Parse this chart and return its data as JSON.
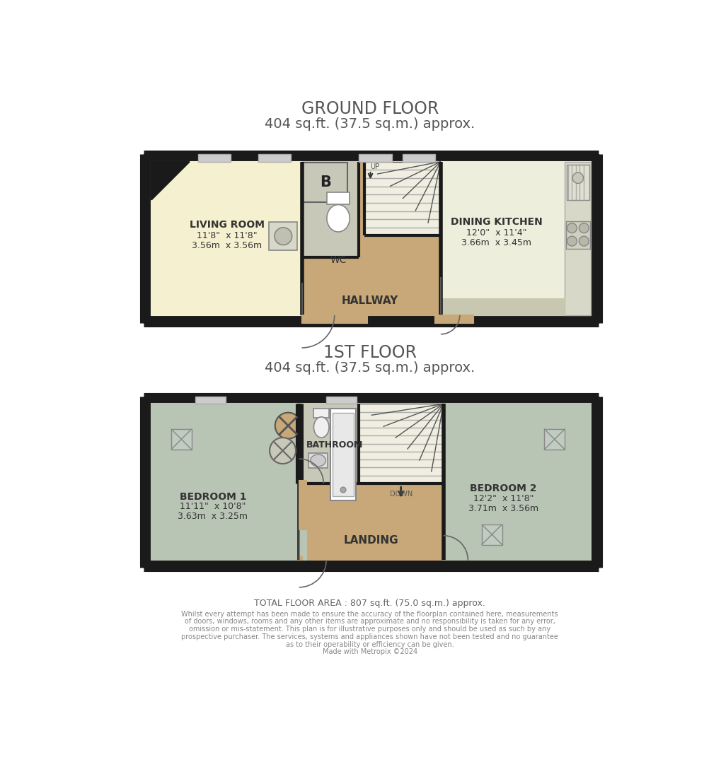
{
  "bg_color": "#ffffff",
  "wall_color": "#1a1a1a",
  "living_room_color": "#f5f0d0",
  "kitchen_color": "#eeeedd",
  "hallway_color": "#c8a878",
  "wc_color": "#c8c8b8",
  "stair_color": "#f0eee0",
  "bathroom_fill": "#c8a878",
  "bedroom1_color": "#b8c4b4",
  "bedroom2_color": "#b8c4b4",
  "landing_color": "#c8a878",
  "title_color": "#555555",
  "ground_floor_title": "GROUND FLOOR",
  "ground_floor_subtitle": "404 sq.ft. (37.5 sq.m.) approx.",
  "first_floor_title": "1ST FLOOR",
  "first_floor_subtitle": "404 sq.ft. (37.5 sq.m.) approx.",
  "total_area": "TOTAL FLOOR AREA : 807 sq.ft. (75.0 sq.m.) approx.",
  "disclaimer_line1": "Whilst every attempt has been made to ensure the accuracy of the floorplan contained here, measurements",
  "disclaimer_line2": "of doors, windows, rooms and any other items are approximate and no responsibility is taken for any error,",
  "disclaimer_line3": "omission or mis-statement. This plan is for illustrative purposes only and should be used as such by any",
  "disclaimer_line4": "prospective purchaser. The services, systems and appliances shown have not been tested and no guarantee",
  "disclaimer_line5": "as to their operability or efficiency can be given.",
  "disclaimer_line6": "Made with Metropix ©2024"
}
